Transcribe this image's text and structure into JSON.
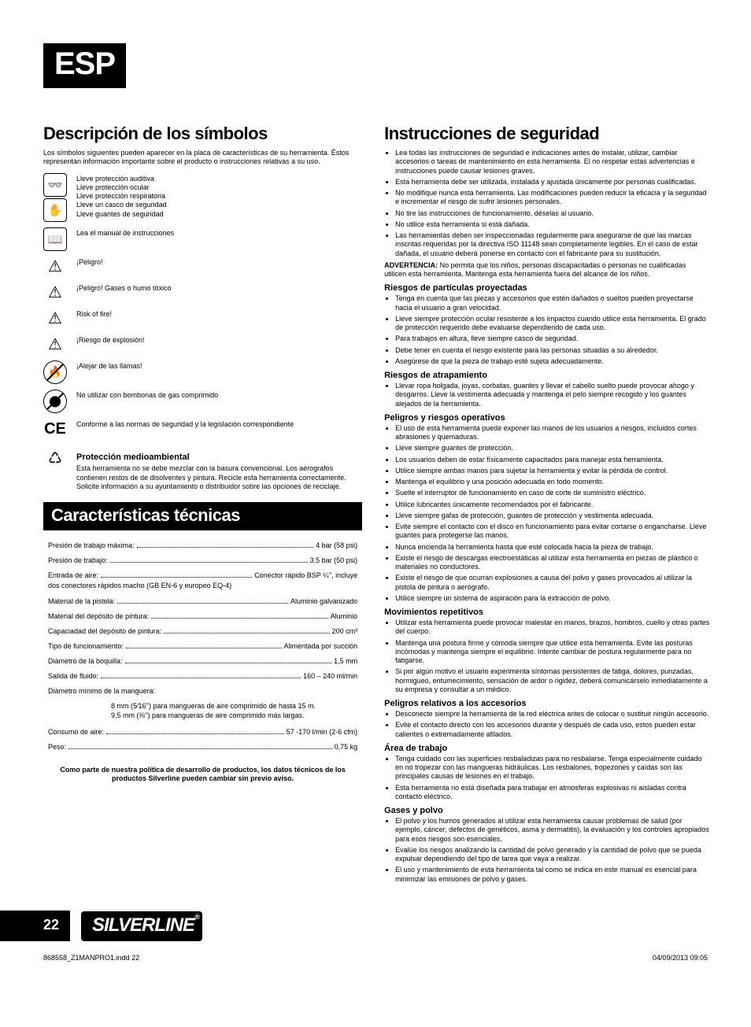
{
  "lang_tag": "ESP",
  "page_number": "22",
  "brand": "SILVERLINE",
  "print": {
    "file": "868558_Z1MANPRO1.indd   22",
    "date": "04/09/2013   09:05"
  },
  "left": {
    "symbols": {
      "heading": "Descripción de los símbolos",
      "intro": "Los símbolos siguientes pueden aparecer en la placa de características de su herramienta. Éstos representan información importante sobre el producto o instrucciones relativas a su uso.",
      "rows": [
        {
          "type": "box-stack",
          "glyphs": [
            "👓",
            "✋"
          ],
          "text": "Lleve protección auditiva\nLleve protección ocular\nLleve protección respiratoria\nLleve un casco de seguridad\nLleve guantes de seguridad"
        },
        {
          "type": "box",
          "glyph": "📖",
          "text": "Lea el manual de instrucciones"
        },
        {
          "type": "tri",
          "glyph": "⚠",
          "text": "¡Peligro!"
        },
        {
          "type": "tri",
          "glyph": "⚠",
          "text": "¡Peligro! Gases o humo tóxico"
        },
        {
          "type": "tri",
          "glyph": "⚠",
          "text": "Risk of fire!"
        },
        {
          "type": "tri",
          "glyph": "⚠",
          "text": "¡Riesgo de explosión!"
        },
        {
          "type": "circ",
          "glyph": "🔥",
          "text": "¡Alejar de las llamas!"
        },
        {
          "type": "circ",
          "glyph": "⬤",
          "text": "No utilizar con bombonas de gas comprimido"
        },
        {
          "type": "ce",
          "glyph": "CE",
          "text": "Conforme a las normas de seguridad y la legislación correspondiente"
        },
        {
          "type": "weee",
          "glyph": "♺",
          "heading": "Protección medioambiental",
          "text": "Esta herramienta no se debe mezclar con la basura convencional. Los aérografos contienen restos de de disolventes y pintura. Recicle esta herramienta correctamente. Solicite información a su ayuntamiento o distribuidor sobre las opciones de reciclaje."
        }
      ]
    },
    "specs": {
      "heading": "Características técnicas",
      "rows": [
        {
          "label": "Presión de trabajo máxima:",
          "value": "4 bar (58 psi)"
        },
        {
          "label": "Presión de trabajo:",
          "value": "3,5 bar (50 psi)"
        },
        {
          "label": "Entrada de aire:",
          "value": "Conector rápido BSP  ¼'', incluye",
          "note": "dos conectores rápidos macho (GB EN-6 y europeo EQ-4)"
        },
        {
          "label": "Material de la pistola:",
          "value": "Aluminio galvanizado"
        },
        {
          "label": "Material del depósito de pintura:",
          "value": "Aluminio"
        },
        {
          "label": "Capaciadad del depósito de pintura:",
          "value": "200 cm³"
        },
        {
          "label": "Tipo de funcionamiento:",
          "value": "Alimentada por succión"
        },
        {
          "label": "Diámetro de la boquilla:",
          "value": "1,5 mm"
        },
        {
          "label": "Salida de fluido:",
          "value": "160 – 240 ml/min"
        },
        {
          "label": "Diámetro mínimo de la manguera:",
          "value": "",
          "sub": "8 mm (5⁄16'') para mangueras de aire comprimido de hasta 15 m.\n9,5 mm (⅜'') para mangueras de aire comprimido más largas."
        },
        {
          "label": "Consumo de aire:",
          "value": "57 -170 l/min (2-6 cfm)"
        },
        {
          "label": "Peso:",
          "value": "0,75 kg"
        }
      ],
      "disclaimer": "Como parte de nuestra política de desarrollo de productos, los datos técnicos de los productos Silverline pueden cambiar sin previo aviso."
    }
  },
  "right": {
    "heading": "Instrucciones de seguridad",
    "intro_list": [
      "Lea todas las instrucciones de seguridad e indicaciones antes de instalar, utilizar, cambiar accesorios o tareas de mantenimiento en esta herramienta. El no respetar estas advertencias e instrucciones puede causar lesiones graves.",
      "Esta herramienta debe ser utilizada, instalada y ajustada únicamente por personas cualificadas.",
      "No modifique nunca esta herramienta. Las modificaciones pueden reducir la eficacia y la seguridad e incrementar el riesgo de sufrir lesiones personales.",
      "No tire las instrucciones de funcionamiento, déselas al usuario.",
      "No utilice esta herramienta si está dañada.",
      "Las herramientas deben ser inspeccionadas regularmente para asegurarse de que las marcas inscritas requeridas por la directiva ISO 11148 sean completamente legibles. En el caso de estar dañada, el usuario deberá ponerse en contacto con el fabricante para su sustitución."
    ],
    "warning": {
      "label": "ADVERTENCIA:",
      "text": "No permita que los niños, personas discapacitadas o personas no cualificadas utilicen esta herramienta. Mantenga esta herramienta fuera del alcance de los niños."
    },
    "sections": [
      {
        "heading": "Riesgos de partículas proyectadas",
        "items": [
          "Tenga en cuenta que las piezas y accesorios que estén dañados o sueltos pueden proyectarse hacia el usuario a gran velocidad.",
          "Lleve siempre protección ocular resistente a los impactos cuando utilice esta herramienta. El grado de protección requerido debe evaluarse dependiendo de cada uso.",
          "Para trabajos en altura, lleve siempre casco de seguridad.",
          "Debe tener en cuenta el riesgo existente para las personas situadas a su alrededor.",
          "Asegúrese de que la pieza de trabajo esté sujeta adecuadamente."
        ]
      },
      {
        "heading": "Riesgos de atrapamiento",
        "items": [
          "Llevar ropa holgada, joyas, corbatas, guantes y llevar el cabello suelto puede provocar ahogo y desgarros. Lleve la vestimenta adecuada y mantenga el pelo siempre recogido y los guantes alejados de la herramienta."
        ]
      },
      {
        "heading": "Peligros y riesgos operativos",
        "items": [
          "El uso de esta herramienta puede exponer las manos de los usuarios a riesgos, incluidos cortes abrasiones y quemaduras.",
          "Lleve siempre guantes de protección.",
          "Los usuarios deben de estar físicamente capacitados para manejar esta herramienta.",
          "Utilice siempre ambas manos para sujetar la herramienta y evitar la pérdida de control.",
          "Mantenga el equilibrio y una posición adecuada en todo momento.",
          "Suelte el interruptor de funcionamiento en caso de corte de suministro eléctrico.",
          "Utilice lubricantes únicamente recomendados por el fabricante.",
          "Lleve siempre gafas de protección, guantes de protección y vestimenta adecuada.",
          "Evite siempre el contacto con el disco en funcionamiento para evitar cortarse o engancharse. Lleve guantes para protegerse las manos.",
          "Nunca encienda la herramienta hasta que esté colocada hacia la pieza de trabajo.",
          "Existe el riesgo de descargas electroestáticas al utilizar esta herramienta en piezas de plástico o materiales no conductores.",
          "Existe el riesgo de que ocurran explosiones a causa del polvo y gases provocados al utilizar la pistola de pintura o aerógrafo.",
          "Utilice siempre un sistema de aspiración para la extracción de polvo."
        ]
      },
      {
        "heading": "Movimientos repetitivos",
        "items": [
          "Utilizar esta herramienta puede provocar malestar en manos, brazos, hombros, cuello y otras partes del cuerpo.",
          "Mantenga una postura firme y cómoda siempre que utilice esta herramienta. Evite las posturas incómodas y mantenga siempre el equilibrio. Intente cambiar de postura regularmente para no fatigarse.",
          "Si por algún motivo el usuario experimenta síntomas persistentes de fatiga, dolores, punzadas, hormigueo, entumecimiento, sensación de ardor o rigidez, deberá comunicárselo inmediatamente a su empresa y consultar a un médico."
        ]
      },
      {
        "heading": "Peligros relativos a los accesorios",
        "items": [
          "Desconecte siempre la herramienta de la red eléctrica antes de colocar  o sustituir ningún accesorio.",
          "Evite el contacto directo con los accesorios durante y después de cada uso, estos pueden estar calientes o extremadamente afilados."
        ]
      },
      {
        "heading": "Área de trabajo",
        "items": [
          "Tenga cuidado con las superficies resbaladizas para no resbalarse. Tenga especialmente cuidado en no tropezar con las mangueras hidráulicas. Los resbalones, tropezones y caídas son las principales causas de lesiones en el trabajo.",
          "Esta herramienta no está diseñada  para trabajar en atmosferas explosivas ni aisladas contra contacto eléctrico."
        ]
      },
      {
        "heading": "Gases y polvo",
        "items": [
          "El polvo y los humos generados al utilizar esta herramienta causar problemas de salud (por ejemplo, cáncer, defectos de genéticos, asma y dermatitis), la evaluación y los controles apropiados para esos riesgos son esenciales.",
          "Evalúe los riesgos analizando la cantidad de polvo generado y la cantidad de polvo que se pueda expulsar dependiendo del tipo de tarea que vaya a realizar.",
          "El uso y mantenimiento de esta herramienta tal como se indica en este manual es esencial para minimizar las emisiones de polvo y gases."
        ]
      }
    ]
  }
}
